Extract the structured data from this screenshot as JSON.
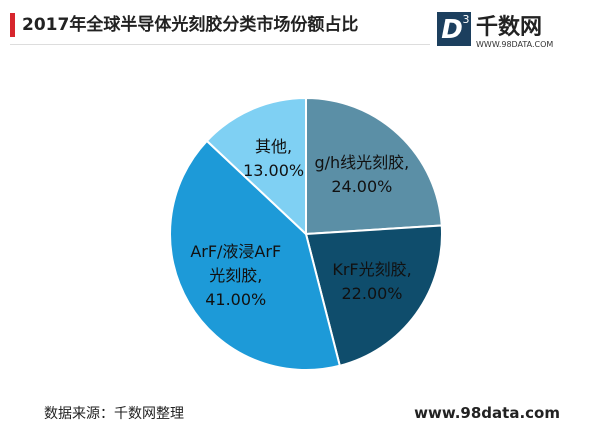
{
  "chart_data": {
    "type": "pie",
    "title": "2017年全球半导体光刻胶分类市场份额占比",
    "categories": [
      "g/h线光刻胶,",
      "KrF光刻胶,",
      "ArF/液浸ArF光刻胶,",
      "其他,"
    ],
    "values": [
      24,
      22,
      41,
      13
    ],
    "value_labels": [
      "24.00%",
      "22.00%",
      "41.00%",
      "13.00%"
    ],
    "colors": [
      "#5b8fa6",
      "#0f4d6c",
      "#1d9ad8",
      "#7fd0f3"
    ]
  },
  "logo": {
    "icon_letter": "D",
    "icon_sup": "3",
    "name": "千数网",
    "url": "WWW.98DATA.COM"
  },
  "footer": {
    "source": "数据来源：千数网整理",
    "site": "www.98data.com"
  }
}
